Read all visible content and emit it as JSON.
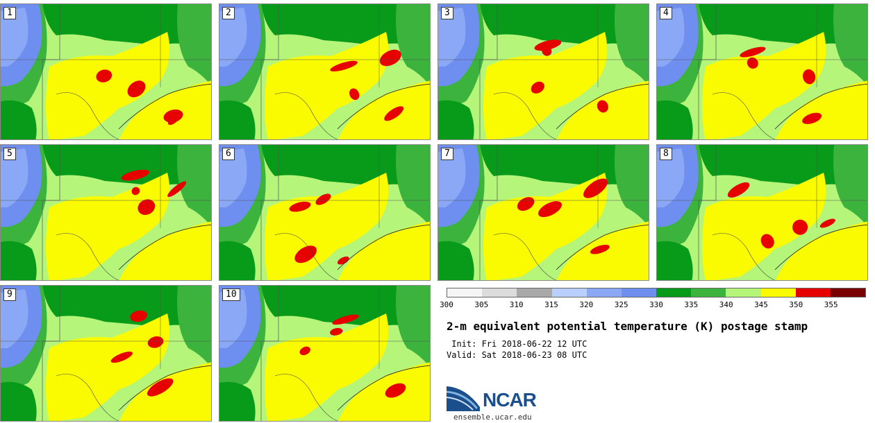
{
  "panels": [
    {
      "label": "1"
    },
    {
      "label": "2"
    },
    {
      "label": "3"
    },
    {
      "label": "4"
    },
    {
      "label": "5"
    },
    {
      "label": "6"
    },
    {
      "label": "7"
    },
    {
      "label": "8"
    },
    {
      "label": "9"
    },
    {
      "label": "10"
    }
  ],
  "colorbar": {
    "colors": [
      "#f5f5f5",
      "#dcdcdc",
      "#a9a9a9",
      "#b9d0ff",
      "#8aa8f5",
      "#6f8ff0",
      "#089a19",
      "#3cb33c",
      "#b4f57a",
      "#fbfb00",
      "#e60000",
      "#7a0000"
    ],
    "ticks": [
      "300",
      "305",
      "310",
      "315",
      "320",
      "325",
      "330",
      "335",
      "340",
      "345",
      "350",
      "355"
    ]
  },
  "title": "2-m equivalent potential temperature (K) postage stamp",
  "init": " Init: Fri 2018-06-22 12 UTC",
  "valid": "Valid: Sat 2018-06-23 08 UTC",
  "logo": {
    "text": "NCAR",
    "url": "ensemble.ucar.edu"
  }
}
